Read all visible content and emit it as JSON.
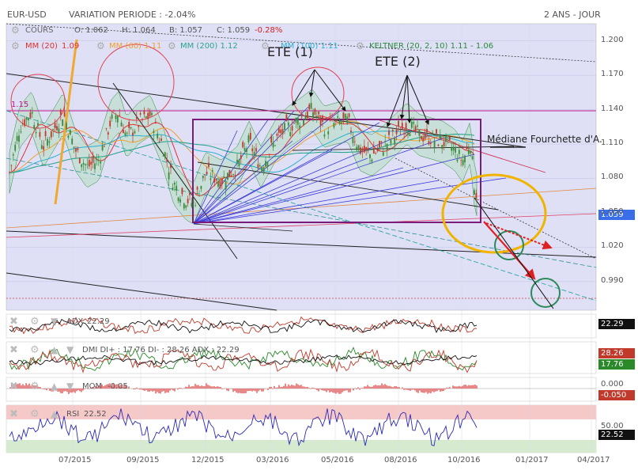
{
  "header": {
    "symbol": "EUR-USD",
    "variation": "VARIATION PERIODE : -2.04%",
    "period": "2 ANS - JOUR"
  },
  "legend": {
    "cours": "COURS",
    "open": "O: 1.062",
    "high": "H: 1.064",
    "low": "B: 1.057",
    "close": "C: 1.059",
    "close_change": "-0.28%",
    "mm20": "MM (20)",
    "mm20_val": "1.09",
    "mm60": "MM (60) 1.11",
    "mm200": "MM (200) 1.12",
    "mm100": "MM (100) 1.11",
    "keltner": "KELTNER (20, 2, 10) 1.11 - 1.06"
  },
  "annotations": {
    "ete1": "ETE (1)",
    "ete2": "ETE (2)",
    "mediane": "Médiane Fourchette d'A.",
    "level_115": "1.15"
  },
  "panels": {
    "adx": {
      "label": "ADX",
      "value": "22.29",
      "badge": "22.29"
    },
    "dmi": {
      "label": "DMI DI+ : 17.76 DI- : 28.26 ADX : 22.29",
      "badge_minus": "28.26",
      "badge_plus": "17.76"
    },
    "mom": {
      "label": "MOM",
      "value": "-0.05",
      "badge": "-0.050",
      "tick_top": "0.000"
    },
    "rsi": {
      "label": "RSI",
      "value": "22.52",
      "badge": "22.52",
      "tick_top": "50.00"
    }
  },
  "price_badge": "1.059",
  "axis": {
    "y_ticks": [
      "1.200",
      "1.170",
      "1.140",
      "1.110",
      "1.080",
      "1.050",
      "1.020",
      "0.990"
    ],
    "x_ticks": [
      "07/2015",
      "09/2015",
      "12/2015",
      "03/2016",
      "05/2016",
      "08/2016",
      "10/2016",
      "01/2017",
      "04/2017"
    ]
  },
  "colors": {
    "up": "#3a8a3a",
    "down": "#c0392b",
    "mm20": "#e03030",
    "mm60": "#f0a030",
    "mm200": "#2aa58a",
    "mm100": "#2ab0d0",
    "keltner": "#2a8a3a",
    "fork": "#6a1a6a",
    "rect": "#7a1a7a",
    "oval": "#f0b400"
  },
  "chart_data": {
    "type": "line",
    "title": "EUR-USD",
    "x": [
      "07/2015",
      "09/2015",
      "12/2015",
      "03/2016",
      "05/2016",
      "08/2016",
      "10/2016"
    ],
    "series": [
      {
        "name": "COURS",
        "values": [
          1.1,
          1.12,
          1.06,
          1.1,
          1.13,
          1.12,
          1.09
        ]
      }
    ],
    "ylim": [
      0.97,
      1.22
    ],
    "last": {
      "open": 1.062,
      "high": 1.064,
      "low": 1.057,
      "close": 1.059
    },
    "grid": true
  }
}
